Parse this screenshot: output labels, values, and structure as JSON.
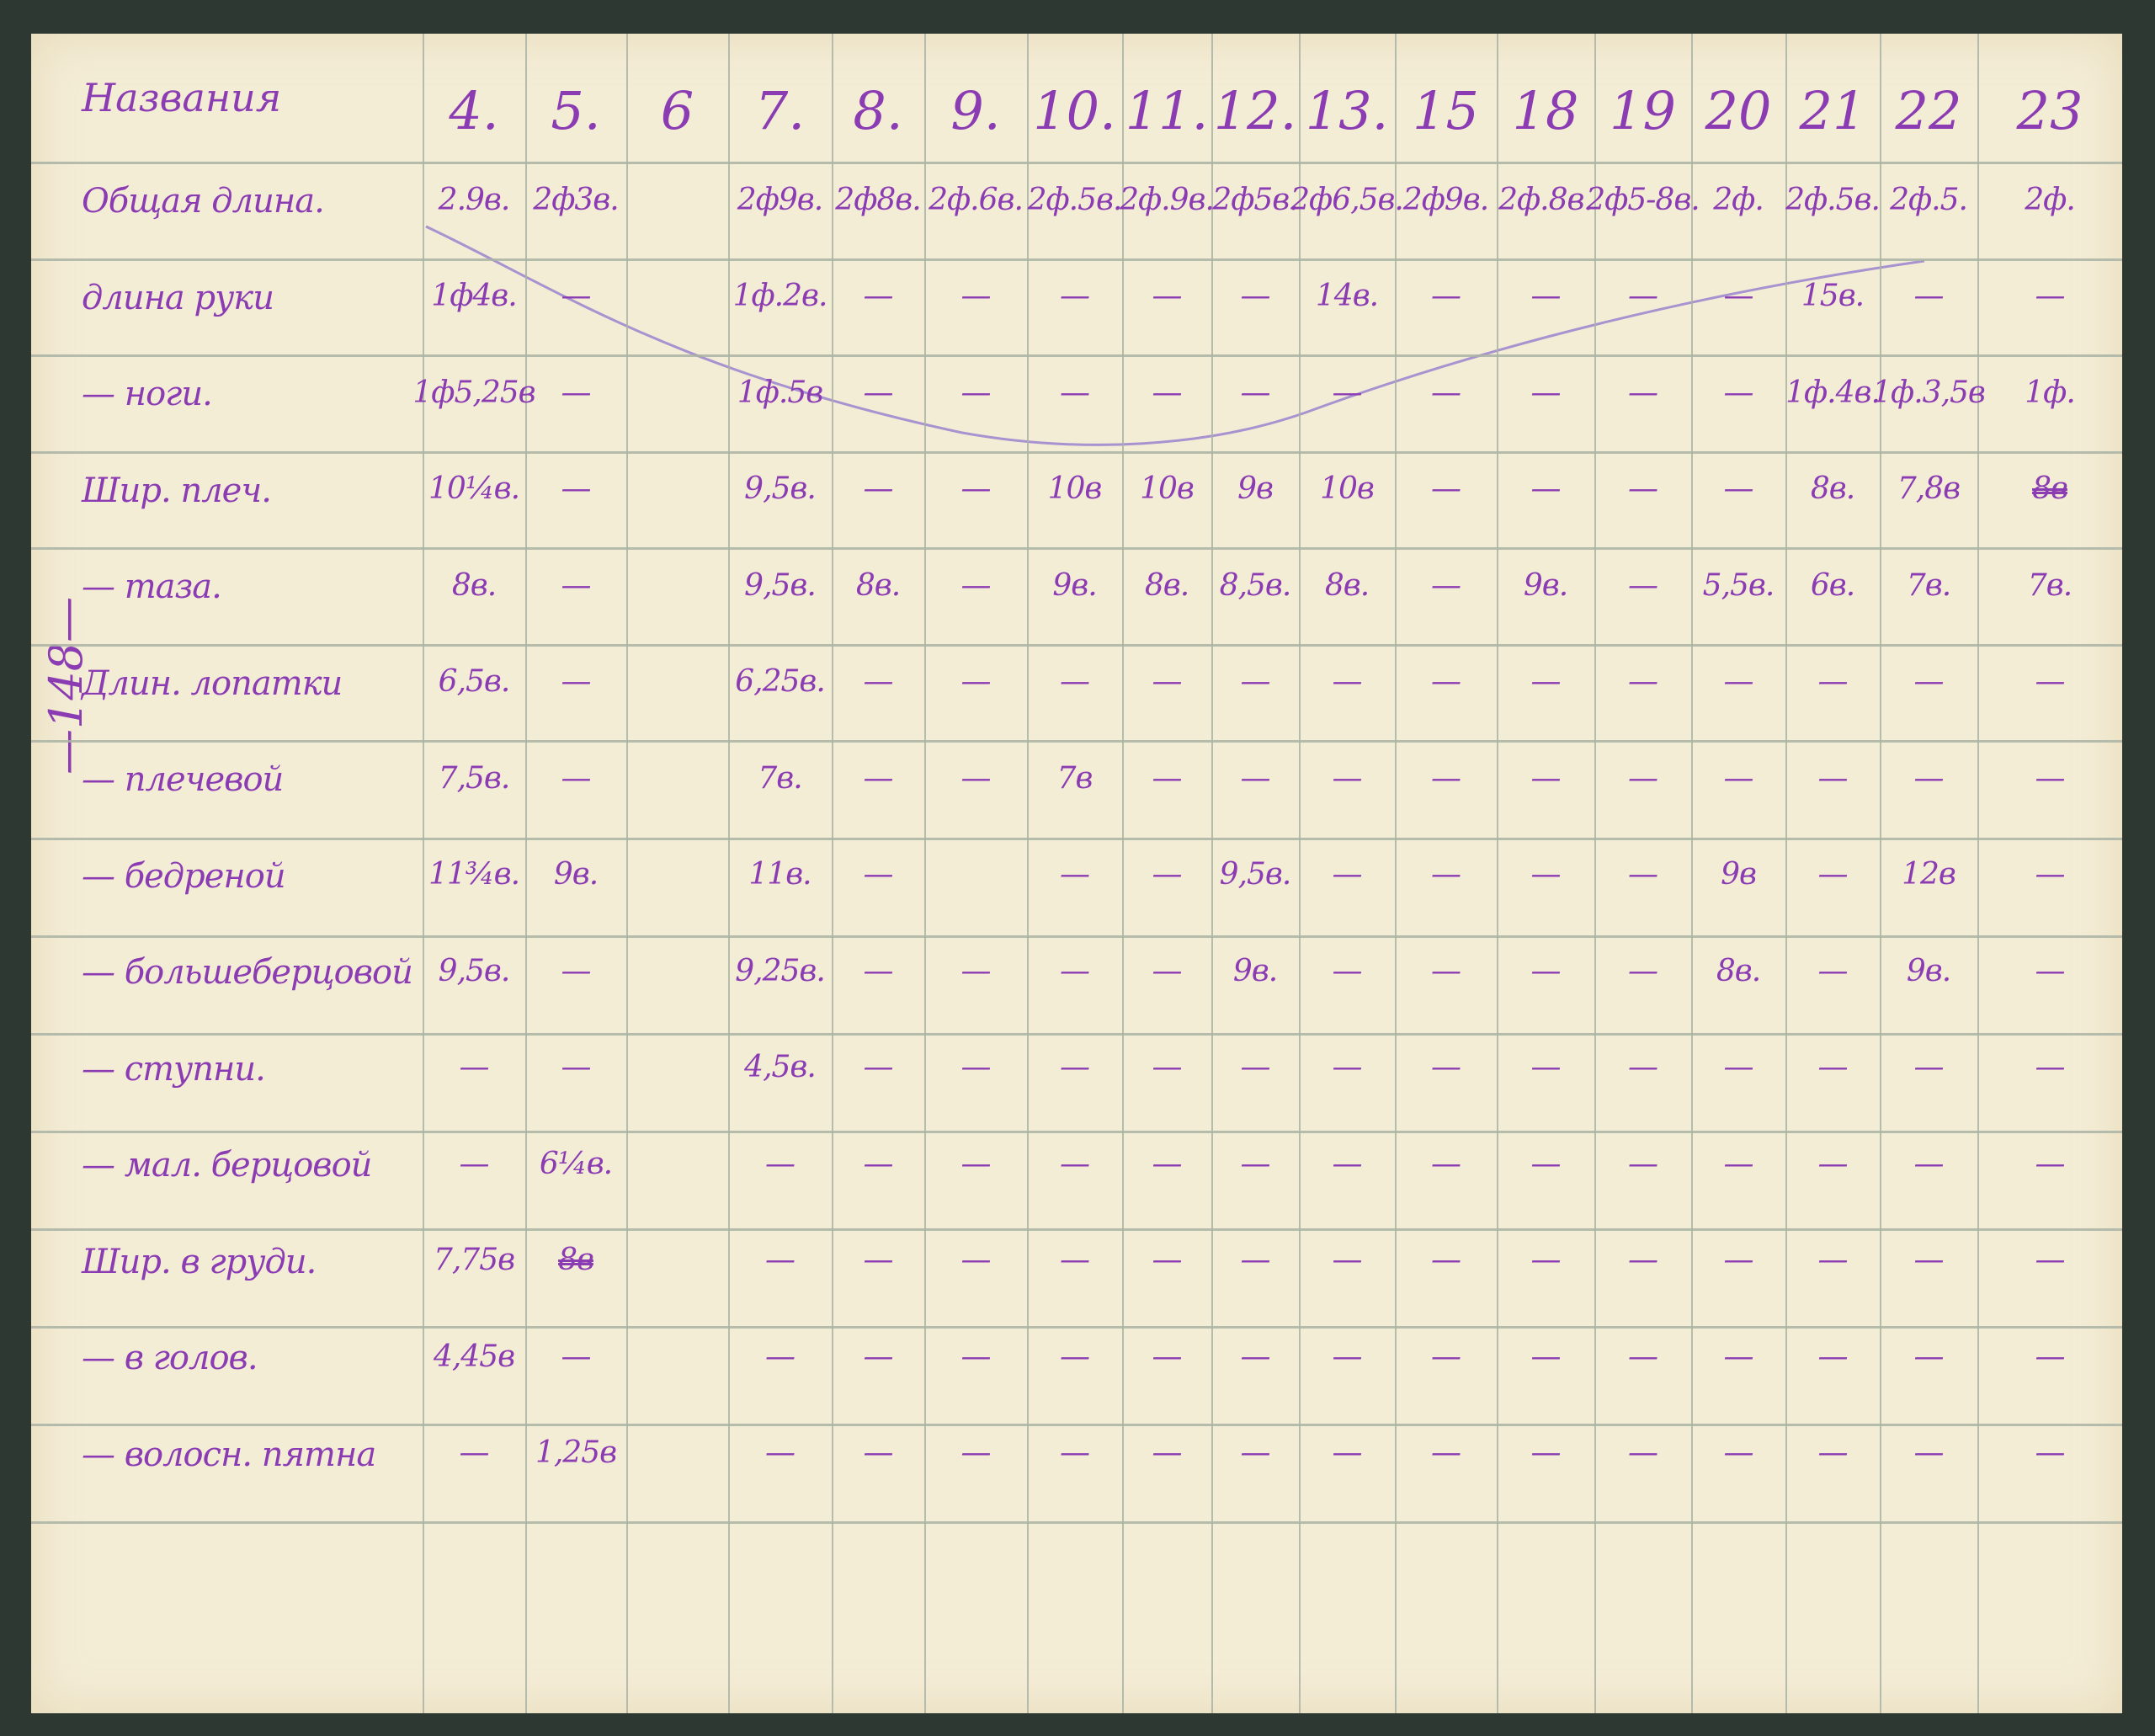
{
  "header": {
    "title": "Названия"
  },
  "columns": [
    "4.",
    "5.",
    "6",
    "7.",
    "8.",
    "9.",
    "10.",
    "11.",
    "12.",
    "13.",
    "15",
    "18",
    "19",
    "20",
    "21",
    "22",
    "23"
  ],
  "rows": [
    {
      "label": "Общая длина.",
      "values": [
        "2.9в.",
        "2ф3в.",
        "",
        "2ф9в.",
        "2ф8в.",
        "2ф.6в.",
        "2ф.5в.",
        "2ф.9в.",
        "2ф5в.",
        "2ф6,5в.",
        "2ф9в.",
        "2ф.8в.",
        "2ф5-8в.",
        "2ф.",
        "2ф.5в.",
        "2ф.5.",
        "2ф."
      ]
    },
    {
      "label": "длина руки",
      "values": [
        "1ф4в.",
        "—",
        "",
        "1ф.2в.",
        "—",
        "—",
        "—",
        "—",
        "—",
        "14в.",
        "—",
        "—",
        "—",
        "—",
        "15в.",
        "—",
        "—"
      ]
    },
    {
      "label": "— ноги.",
      "values": [
        "1ф5,25в",
        "—",
        "",
        "1ф.5в",
        "—",
        "—",
        "—",
        "—",
        "—",
        "—",
        "—",
        "—",
        "—",
        "—",
        "1ф.4в.",
        "1ф.3,5в",
        "1ф."
      ]
    },
    {
      "label": "Шир. плеч.",
      "values": [
        "10¼в.",
        "—",
        "",
        "9,5в.",
        "—",
        "—",
        "10в",
        "10в",
        "9в",
        "10в",
        "—",
        "—",
        "—",
        "—",
        "8в.",
        "7,8в",
        "8в"
      ],
      "struck": [
        16
      ]
    },
    {
      "label": "— таза.",
      "values": [
        "8в.",
        "—",
        "",
        "9,5в.",
        "8в.",
        "—",
        "9в.",
        "8в.",
        "8,5в.",
        "8в.",
        "—",
        "9в.",
        "—",
        "5,5в.",
        "6в.",
        "7в.",
        "7в."
      ]
    },
    {
      "label": "Длин. лопатки",
      "values": [
        "6,5в.",
        "—",
        "",
        "6,25в.",
        "—",
        "—",
        "—",
        "—",
        "—",
        "—",
        "—",
        "—",
        "—",
        "—",
        "—",
        "—",
        "—"
      ]
    },
    {
      "label": "— плечевой",
      "values": [
        "7,5в.",
        "—",
        "",
        "7в.",
        "—",
        "—",
        "7в",
        "—",
        "—",
        "—",
        "—",
        "—",
        "—",
        "—",
        "—",
        "—",
        "—"
      ]
    },
    {
      "label": "— бедреной",
      "values": [
        "11¾в.",
        "9в.",
        "",
        "11в.",
        "—",
        "",
        "—",
        "—",
        "9,5в.",
        "—",
        "—",
        "—",
        "—",
        "9в",
        "—",
        "12в",
        "—"
      ]
    },
    {
      "label": "— большеберцовой",
      "values": [
        "9,5в.",
        "—",
        "",
        "9,25в.",
        "—",
        "—",
        "—",
        "—",
        "9в.",
        "—",
        "—",
        "—",
        "—",
        "8в.",
        "—",
        "9в.",
        "—"
      ]
    },
    {
      "label": "— ступни.",
      "values": [
        "—",
        "—",
        "",
        "4,5в.",
        "—",
        "—",
        "—",
        "—",
        "—",
        "—",
        "—",
        "—",
        "—",
        "—",
        "—",
        "—",
        "—"
      ]
    },
    {
      "label": "— мал. берцовой",
      "values": [
        "—",
        "6¼в.",
        "",
        "—",
        "—",
        "—",
        "—",
        "—",
        "—",
        "—",
        "—",
        "—",
        "—",
        "—",
        "—",
        "—",
        "—"
      ]
    },
    {
      "label": "Шир. в груди.",
      "values": [
        "7,75в",
        "8в",
        "",
        "—",
        "—",
        "—",
        "—",
        "—",
        "—",
        "—",
        "—",
        "—",
        "—",
        "—",
        "—",
        "—",
        "—"
      ],
      "struck": [
        1
      ]
    },
    {
      "label": "— в голов.",
      "values": [
        "4,45в",
        "—",
        "",
        "—",
        "—",
        "—",
        "—",
        "—",
        "—",
        "—",
        "—",
        "—",
        "—",
        "—",
        "—",
        "—",
        "—"
      ]
    },
    {
      "label": "— волосн. пятна",
      "values": [
        "—",
        "1,25в",
        "",
        "—",
        "—",
        "—",
        "—",
        "—",
        "—",
        "—",
        "—",
        "—",
        "—",
        "—",
        "—",
        "—",
        "—"
      ]
    }
  ],
  "margin_note": "—148—",
  "colors": {
    "ink": "#8b3cb3",
    "paper": "#f4edd6",
    "grid": "#aab3a4",
    "background": "#2e3832",
    "pencil_curve": "#a892cf"
  }
}
